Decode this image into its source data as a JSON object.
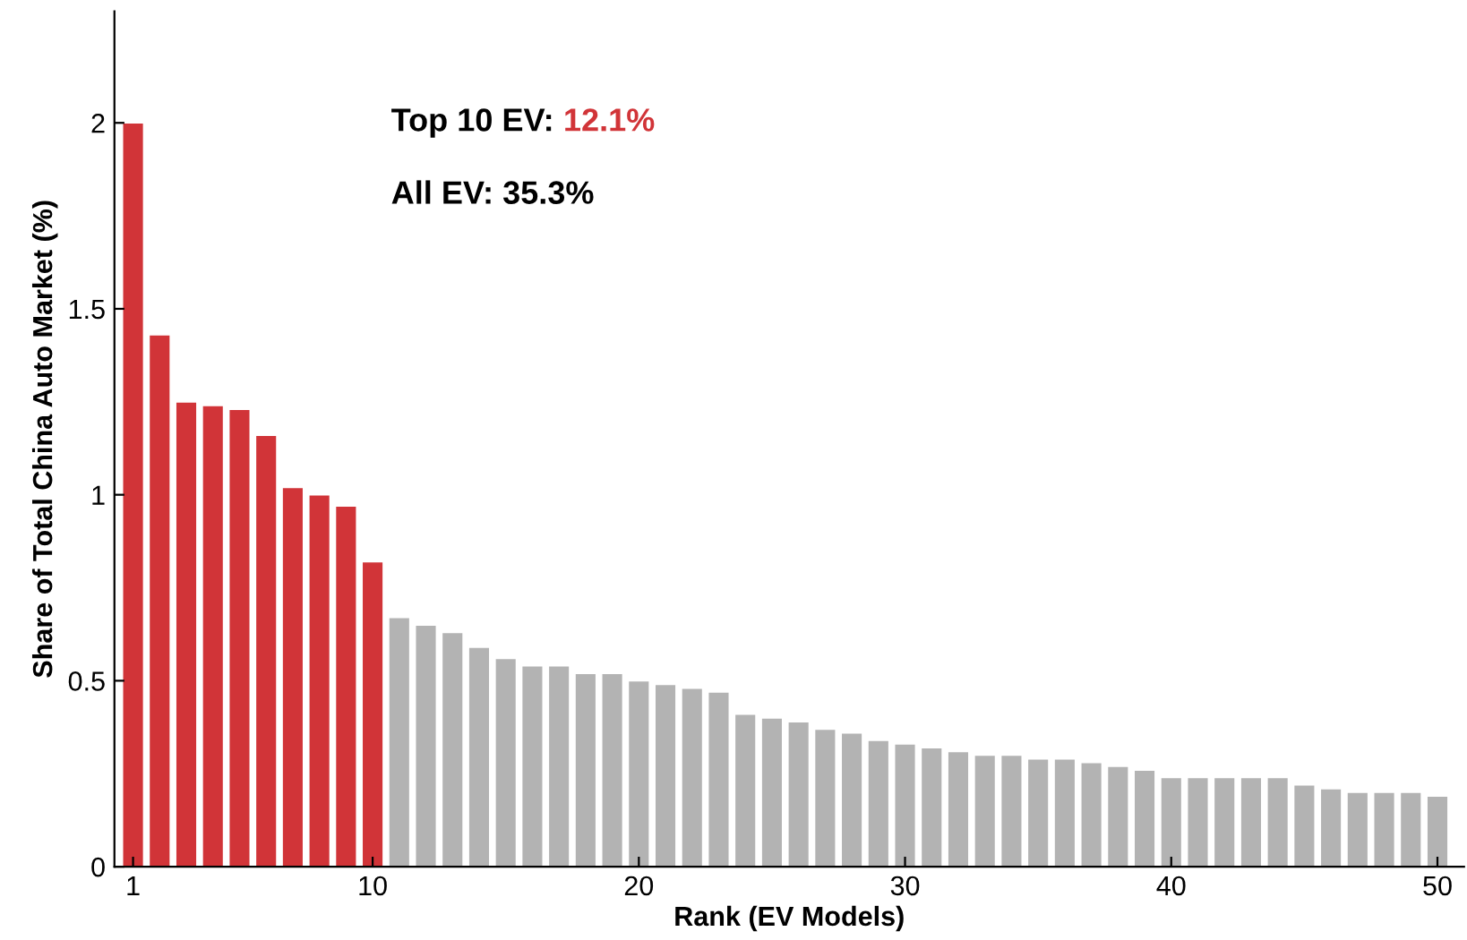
{
  "chart_data": {
    "type": "bar",
    "xlabel": "Rank (EV Models)",
    "ylabel": "Share of Total China Auto Market (%)",
    "x": [
      1,
      2,
      3,
      4,
      5,
      6,
      7,
      8,
      9,
      10,
      11,
      12,
      13,
      14,
      15,
      16,
      17,
      18,
      19,
      20,
      21,
      22,
      23,
      24,
      25,
      26,
      27,
      28,
      29,
      30,
      31,
      32,
      33,
      34,
      35,
      36,
      37,
      38,
      39,
      40,
      41,
      42,
      43,
      44,
      45,
      46,
      47,
      48,
      49,
      50
    ],
    "values": [
      2.0,
      1.43,
      1.25,
      1.24,
      1.23,
      1.16,
      1.02,
      1.0,
      0.97,
      0.82,
      0.67,
      0.65,
      0.63,
      0.59,
      0.56,
      0.54,
      0.54,
      0.52,
      0.52,
      0.5,
      0.49,
      0.48,
      0.47,
      0.41,
      0.4,
      0.39,
      0.37,
      0.36,
      0.34,
      0.33,
      0.32,
      0.31,
      0.3,
      0.3,
      0.29,
      0.29,
      0.28,
      0.27,
      0.26,
      0.24,
      0.24,
      0.24,
      0.24,
      0.24,
      0.22,
      0.21,
      0.2,
      0.2,
      0.2,
      0.19
    ],
    "colors": [
      "#d13438",
      "#d13438",
      "#d13438",
      "#d13438",
      "#d13438",
      "#d13438",
      "#d13438",
      "#d13438",
      "#d13438",
      "#d13438",
      "#b3b3b3",
      "#b3b3b3",
      "#b3b3b3",
      "#b3b3b3",
      "#b3b3b3",
      "#b3b3b3",
      "#b3b3b3",
      "#b3b3b3",
      "#b3b3b3",
      "#b3b3b3",
      "#b3b3b3",
      "#b3b3b3",
      "#b3b3b3",
      "#b3b3b3",
      "#b3b3b3",
      "#b3b3b3",
      "#b3b3b3",
      "#b3b3b3",
      "#b3b3b3",
      "#b3b3b3",
      "#b3b3b3",
      "#b3b3b3",
      "#b3b3b3",
      "#b3b3b3",
      "#b3b3b3",
      "#b3b3b3",
      "#b3b3b3",
      "#b3b3b3",
      "#b3b3b3",
      "#b3b3b3",
      "#b3b3b3",
      "#b3b3b3",
      "#b3b3b3",
      "#b3b3b3",
      "#b3b3b3",
      "#b3b3b3",
      "#b3b3b3",
      "#b3b3b3",
      "#b3b3b3",
      "#b3b3b3"
    ],
    "xlim": [
      0.3,
      51
    ],
    "xticks": [
      1,
      10,
      20,
      30,
      40,
      50
    ],
    "ylim": [
      0,
      2.3
    ],
    "yticks": [
      0,
      {
        "value": 0.5,
        "label": "0.5"
      },
      1,
      {
        "value": 1.5,
        "label": "1.5"
      },
      2
    ],
    "annotations": [
      "Top 10 EV: 12.1%",
      "All EV: 35.3%"
    ],
    "grid": false,
    "legend": false
  }
}
